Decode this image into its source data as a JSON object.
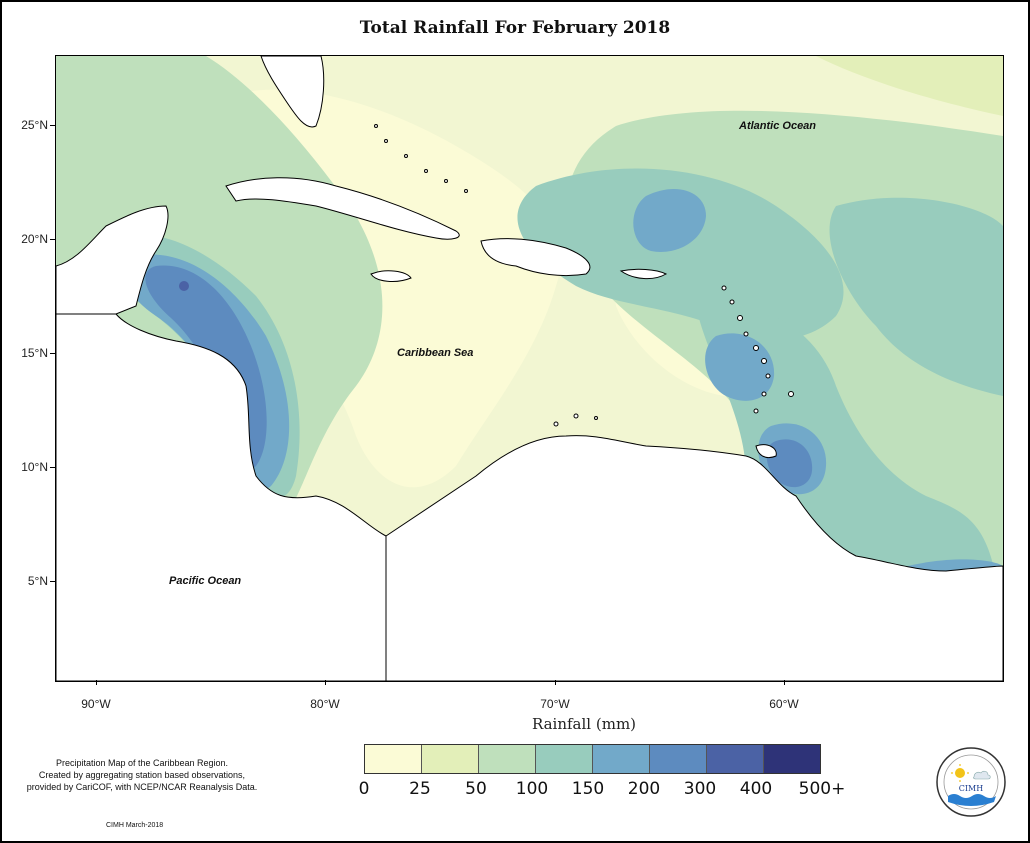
{
  "title": "Total Rainfall For February 2018",
  "y_axis": {
    "ticks": [
      {
        "label": "25°N",
        "lat": 25
      },
      {
        "label": "20°N",
        "lat": 20
      },
      {
        "label": "15°N",
        "lat": 15
      },
      {
        "label": "10°N",
        "lat": 10
      },
      {
        "label": "5°N",
        "lat": 5
      }
    ]
  },
  "x_axis": {
    "title": "Rainfall (mm)",
    "ticks": [
      {
        "label": "90°W",
        "lon": -90
      },
      {
        "label": "80°W",
        "lon": -80
      },
      {
        "label": "70°W",
        "lon": -70
      },
      {
        "label": "60°W",
        "lon": -60
      }
    ]
  },
  "map_extent": {
    "lon_min": -91.8,
    "lon_max": -50.5,
    "lat_min": 0.9,
    "lat_max": 28.1
  },
  "ocean_labels": [
    {
      "text": "Atlantic Ocean",
      "lon": -59.9,
      "lat": 25.0
    },
    {
      "text": "Caribbean Sea",
      "lon": -73.0,
      "lat": 15.0
    },
    {
      "text": "Pacific Ocean",
      "lon": -86.9,
      "lat": 5.0
    }
  ],
  "legend": {
    "labels": [
      "0",
      "25",
      "50",
      "100",
      "150",
      "200",
      "300",
      "400",
      "500+"
    ],
    "colors": [
      "#fbfbd6",
      "#e3efb9",
      "#bfe0bc",
      "#98ccbd",
      "#72a9c9",
      "#5d8bbf",
      "#4b62a5",
      "#2e3378",
      "#141d4f"
    ]
  },
  "footnote": {
    "lines": [
      "Precipitation Map of the Caribbean Region.",
      "Created by aggregating station based observations,",
      "provided by CariCOF, with NCEP/NCAR Reanalysis Data."
    ],
    "credit": "CIMH March-2018"
  },
  "logo": {
    "text": "CIMH",
    "icon": "cimh-logo-sun-cloud-waves"
  }
}
